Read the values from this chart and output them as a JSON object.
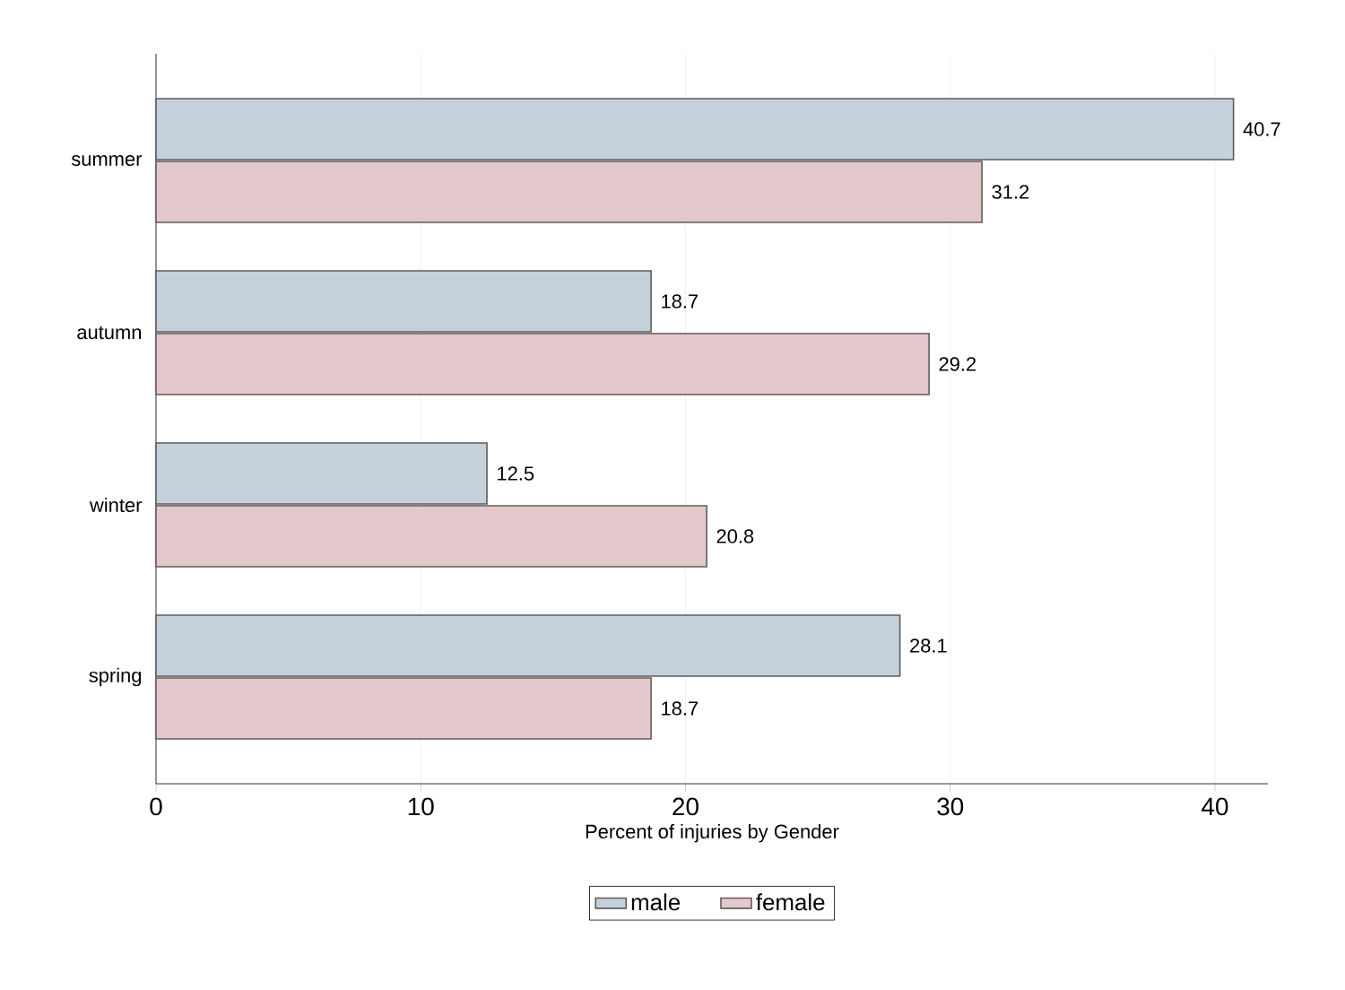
{
  "chart_data": {
    "type": "bar",
    "orientation": "horizontal",
    "categories": [
      "summer",
      "autumn",
      "winter",
      "spring"
    ],
    "series": [
      {
        "name": "male",
        "color": "#c6d0da",
        "values": [
          40.7,
          18.7,
          12.5,
          28.1
        ]
      },
      {
        "name": "female",
        "color": "#e3c9cb",
        "values": [
          31.2,
          29.2,
          20.8,
          18.7
        ]
      }
    ],
    "xlabel": "Percent of injuries by Gender",
    "xlim": [
      0,
      42
    ],
    "xticks": [
      0,
      10,
      20,
      30,
      40
    ],
    "grid": "x",
    "legend": "bottom",
    "data_labels": true
  }
}
